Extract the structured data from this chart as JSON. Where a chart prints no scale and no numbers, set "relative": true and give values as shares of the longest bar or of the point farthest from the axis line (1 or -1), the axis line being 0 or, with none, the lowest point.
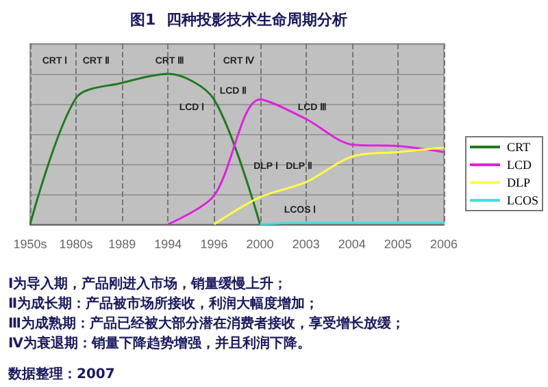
{
  "chart_data": {
    "type": "line",
    "title": "图1  四种投影技术生命周期分析",
    "relative": true,
    "categories": [
      "1950s",
      "1980s",
      "1989",
      "1994",
      "1996",
      "2000",
      "2003",
      "2004",
      "2005",
      "2006"
    ],
    "series": [
      {
        "name": "CRT",
        "color": "#1e7b1e",
        "values": [
          0,
          0.84,
          0.94,
          1,
          0.83,
          0,
          null,
          null,
          null,
          null
        ]
      },
      {
        "name": "LCD",
        "color": "#e020e0",
        "values": [
          null,
          null,
          null,
          0,
          0.19,
          0.83,
          0.7,
          0.53,
          0.52,
          0.48
        ]
      },
      {
        "name": "DLP",
        "color": "#ffff40",
        "values": [
          null,
          null,
          null,
          null,
          0,
          0.18,
          0.28,
          0.45,
          0.48,
          0.51
        ]
      },
      {
        "name": "LCOS",
        "color": "#40e0e0",
        "values": [
          null,
          null,
          null,
          null,
          null,
          0,
          0.01,
          0.01,
          0.01,
          0.01
        ]
      }
    ],
    "annotations": [
      "CRT Ⅰ",
      "CRT Ⅱ",
      "CRT Ⅲ",
      "CRT Ⅳ",
      "LCD Ⅰ",
      "LCD Ⅱ",
      "LCD Ⅲ",
      "DLP Ⅰ",
      "DLP Ⅱ",
      "LCOS Ⅰ",
      "Ⅰ为导入期，产品刚进入市场，销量缓慢上升；",
      "Ⅱ为成长期：产品被市场所接收，利润大幅度增加；",
      "Ⅲ为成熟期：产品已经被大部分潜在消费者接收，享受增长放缓；",
      "Ⅳ为衰退期：销量下降趋势增强，并且利润下降。",
      "数据整理：2007"
    ],
    "grid": true,
    "legend": "right",
    "marker": "none",
    "line_style": "solid"
  }
}
